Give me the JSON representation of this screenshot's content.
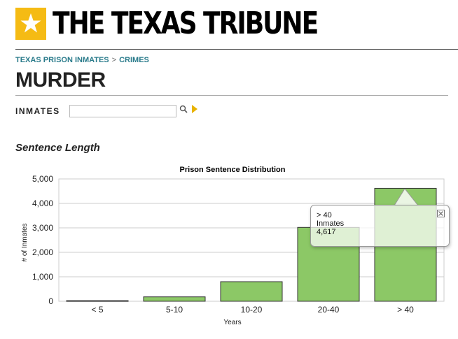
{
  "header": {
    "brand": "THE TEXAS TRIBUNE"
  },
  "breadcrumb": {
    "parent": "TEXAS PRISON INMATES",
    "separator": ">",
    "current": "CRIMES"
  },
  "page": {
    "title": "MURDER"
  },
  "search": {
    "label": "INMATES",
    "value": "",
    "placeholder": ""
  },
  "section": {
    "title": "Sentence Length"
  },
  "tooltip": {
    "category": "> 40",
    "series": "Inmates",
    "value": "4,617"
  },
  "colors": {
    "bar_fill": "#8cc866",
    "bar_stroke": "#333333",
    "brand_yellow": "#f5bb14",
    "link_teal": "#2a7b8b"
  },
  "chart_data": {
    "type": "bar",
    "title": "Prison Sentence Distribution",
    "xlabel": "Years",
    "ylabel": "# of Inmates",
    "categories": [
      "< 5",
      "5-10",
      "10-20",
      "20-40",
      "> 40"
    ],
    "series": [
      {
        "name": "Inmates",
        "values": [
          25,
          180,
          800,
          3020,
          4617
        ]
      }
    ],
    "ylim": [
      0,
      5000
    ],
    "yticks": [
      0,
      1000,
      2000,
      3000,
      4000,
      5000
    ],
    "ytick_labels": [
      "0",
      "1,000",
      "2,000",
      "3,000",
      "4,000",
      "5,000"
    ],
    "grid": true,
    "legend": "none"
  }
}
